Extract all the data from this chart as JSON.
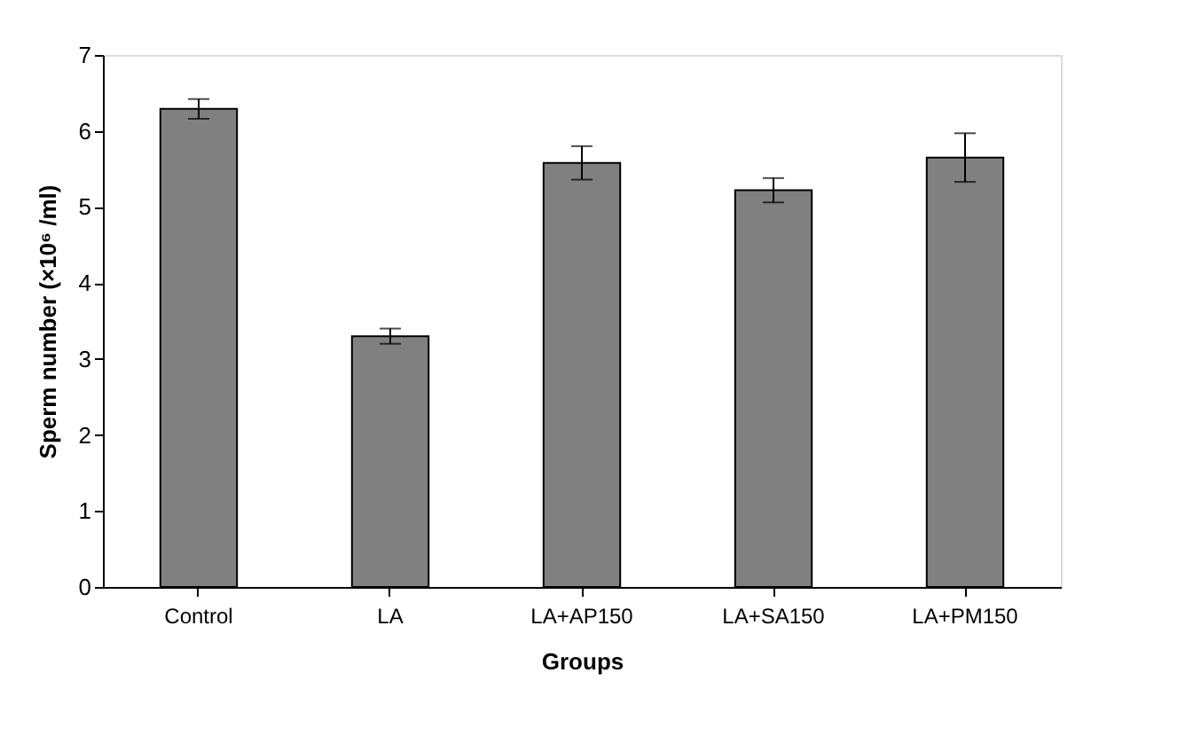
{
  "chart_data": {
    "type": "bar",
    "xlabel": "Groups",
    "ylabel": "Sperm number (×10⁶ /ml)",
    "categories": [
      "Control",
      "LA",
      "LA+AP150",
      "LA+SA150",
      "LA+PM150"
    ],
    "values": [
      6.29,
      3.3,
      5.58,
      5.22,
      5.65
    ],
    "errors": [
      0.13,
      0.1,
      0.22,
      0.16,
      0.32
    ],
    "color": "#808080",
    "ylim": [
      0,
      7
    ],
    "yticks": [
      0,
      1,
      2,
      3,
      4,
      5,
      6,
      7
    ],
    "grid": false
  }
}
